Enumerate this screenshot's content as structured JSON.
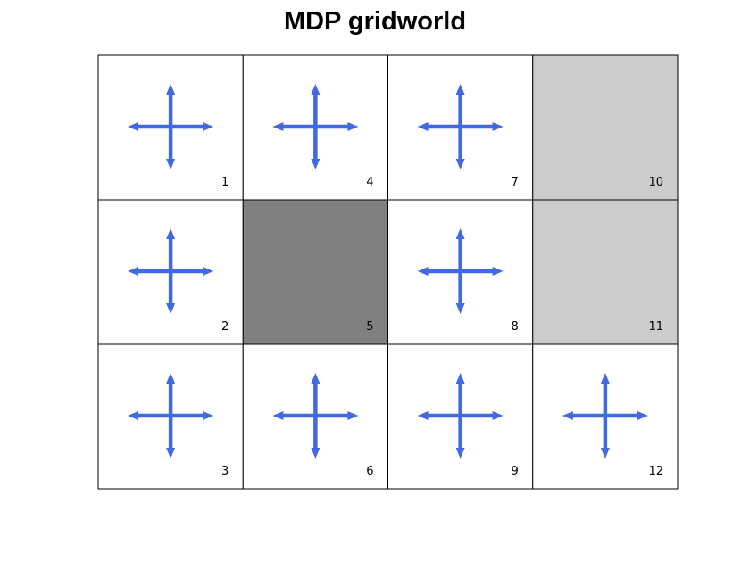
{
  "title": "MDP gridworld",
  "colors": {
    "arrow": "#4169e1",
    "wall": "#808080",
    "terminal": "#cccccc",
    "empty": "#ffffff",
    "border": "#000000"
  },
  "grid": {
    "rows": 3,
    "cols": 4,
    "cells": [
      {
        "num": "1",
        "row": 0,
        "col": 0,
        "kind": "empty",
        "arrows": [
          "up",
          "down",
          "left",
          "right"
        ]
      },
      {
        "num": "2",
        "row": 1,
        "col": 0,
        "kind": "empty",
        "arrows": [
          "up",
          "down",
          "left",
          "right"
        ]
      },
      {
        "num": "3",
        "row": 2,
        "col": 0,
        "kind": "empty",
        "arrows": [
          "up",
          "down",
          "left",
          "right"
        ]
      },
      {
        "num": "4",
        "row": 0,
        "col": 1,
        "kind": "empty",
        "arrows": [
          "up",
          "down",
          "left",
          "right"
        ]
      },
      {
        "num": "5",
        "row": 1,
        "col": 1,
        "kind": "wall",
        "arrows": []
      },
      {
        "num": "6",
        "row": 2,
        "col": 1,
        "kind": "empty",
        "arrows": [
          "up",
          "down",
          "left",
          "right"
        ]
      },
      {
        "num": "7",
        "row": 0,
        "col": 2,
        "kind": "empty",
        "arrows": [
          "up",
          "down",
          "left",
          "right"
        ]
      },
      {
        "num": "8",
        "row": 1,
        "col": 2,
        "kind": "empty",
        "arrows": [
          "up",
          "down",
          "left",
          "right"
        ]
      },
      {
        "num": "9",
        "row": 2,
        "col": 2,
        "kind": "empty",
        "arrows": [
          "up",
          "down",
          "left",
          "right"
        ]
      },
      {
        "num": "10",
        "row": 0,
        "col": 3,
        "kind": "terminal",
        "arrows": []
      },
      {
        "num": "11",
        "row": 1,
        "col": 3,
        "kind": "terminal",
        "arrows": []
      },
      {
        "num": "12",
        "row": 2,
        "col": 3,
        "kind": "empty",
        "arrows": [
          "up",
          "down",
          "left",
          "right"
        ]
      }
    ]
  }
}
